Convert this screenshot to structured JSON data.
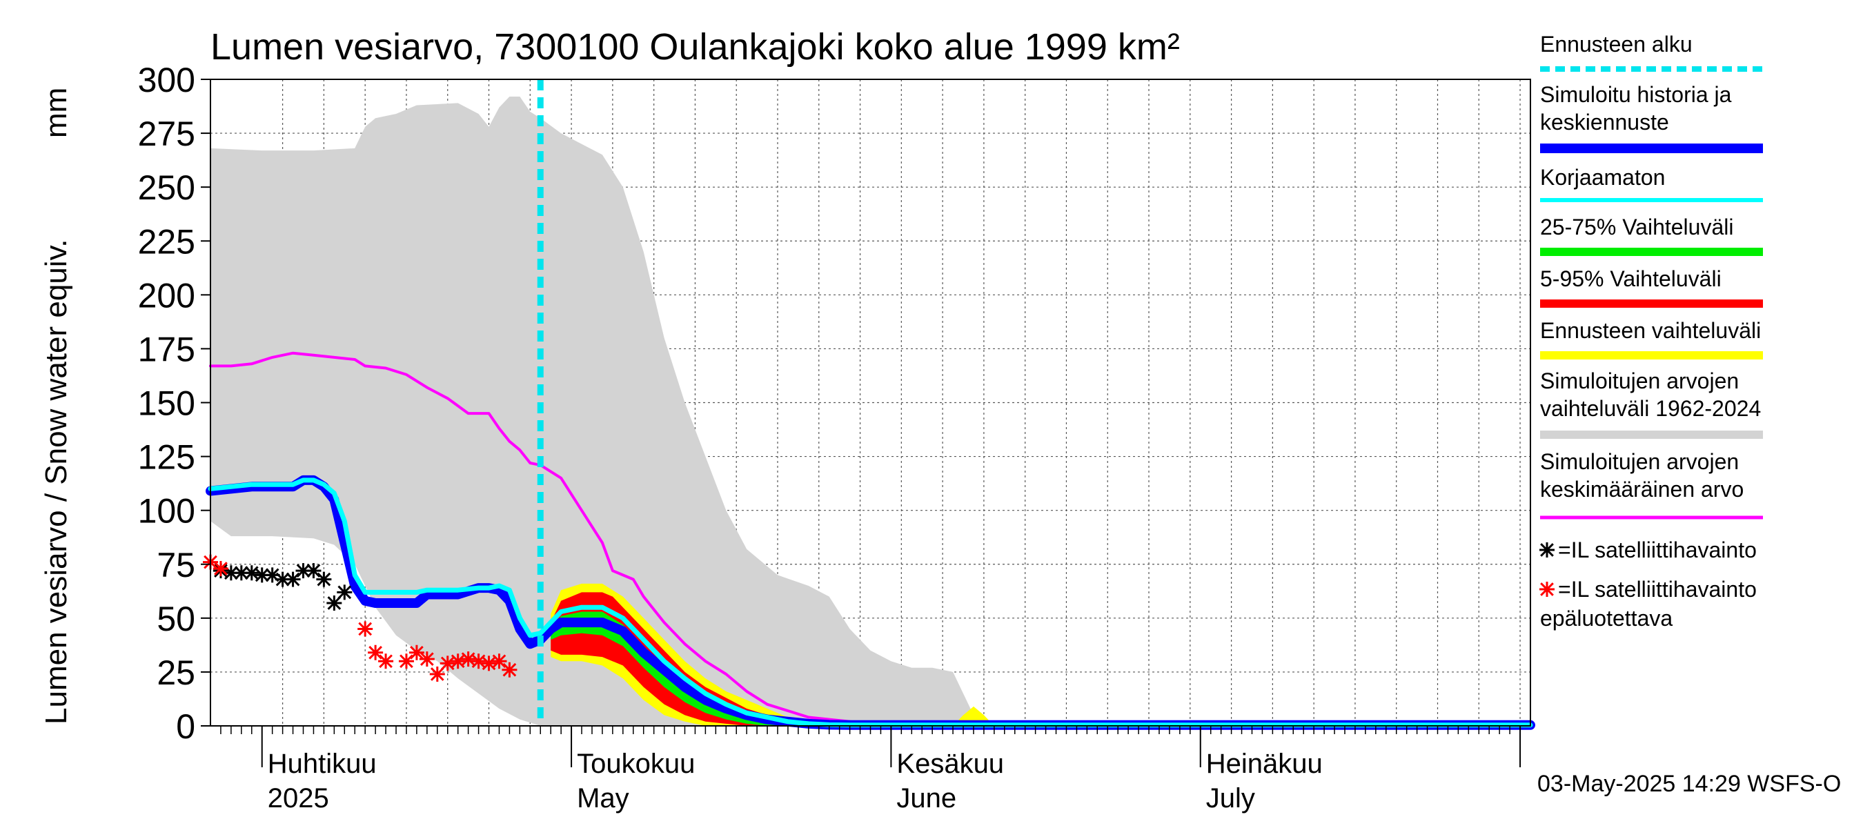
{
  "chart_data": {
    "type": "area",
    "title": "Lumen vesiarvo, 7300100 Oulankajoki koko alue 1999 km²",
    "ylabel": "Lumen vesiarvo / Snow water equiv.",
    "yunit": "mm",
    "ylim": [
      0,
      300
    ],
    "yticks": [
      0,
      25,
      50,
      75,
      100,
      125,
      150,
      175,
      200,
      225,
      250,
      275,
      300
    ],
    "xlim": [
      0,
      128
    ],
    "x_unit": "days since 2025-03-27",
    "month_ticks": [
      5,
      35,
      66,
      96,
      127
    ],
    "month_labels": [
      {
        "x": 5,
        "fi": "Huhtikuu",
        "en": "2025"
      },
      {
        "x": 35,
        "fi": "Toukokuu",
        "en": "May"
      },
      {
        "x": 66,
        "fi": "Kesäkuu",
        "en": "June"
      },
      {
        "x": 96,
        "fi": "Heinäkuu",
        "en": "July"
      }
    ],
    "forecast_start": 32,
    "timestamp": "03-May-2025 14:29 WSFS-O",
    "historical_range": {
      "upper": [
        [
          0,
          268
        ],
        [
          5,
          267
        ],
        [
          10,
          267
        ],
        [
          14,
          268
        ],
        [
          15,
          278
        ],
        [
          16,
          282
        ],
        [
          18,
          284
        ],
        [
          20,
          288
        ],
        [
          24,
          289
        ],
        [
          26,
          284
        ],
        [
          27,
          278
        ],
        [
          28,
          287
        ],
        [
          29,
          292
        ],
        [
          30,
          292
        ],
        [
          31,
          285
        ],
        [
          32,
          282
        ],
        [
          34,
          275
        ],
        [
          36,
          270
        ],
        [
          38,
          265
        ],
        [
          40,
          250
        ],
        [
          42,
          220
        ],
        [
          44,
          180
        ],
        [
          46,
          150
        ],
        [
          48,
          125
        ],
        [
          50,
          100
        ],
        [
          52,
          82
        ],
        [
          55,
          70
        ],
        [
          58,
          65
        ],
        [
          60,
          60
        ],
        [
          62,
          45
        ],
        [
          64,
          35
        ],
        [
          66,
          30
        ],
        [
          68,
          27
        ],
        [
          70,
          27
        ],
        [
          72,
          25
        ],
        [
          73,
          15
        ],
        [
          74,
          5
        ],
        [
          76,
          0
        ],
        [
          128,
          0
        ]
      ],
      "lower": [
        [
          0,
          95
        ],
        [
          2,
          88
        ],
        [
          6,
          88
        ],
        [
          10,
          87
        ],
        [
          12,
          84
        ],
        [
          14,
          75
        ],
        [
          16,
          55
        ],
        [
          18,
          42
        ],
        [
          20,
          35
        ],
        [
          22,
          30
        ],
        [
          24,
          22
        ],
        [
          26,
          15
        ],
        [
          28,
          8
        ],
        [
          30,
          3
        ],
        [
          32,
          0
        ],
        [
          128,
          0
        ]
      ]
    },
    "range_5_95": {
      "upper": [
        [
          33,
          48
        ],
        [
          34,
          58
        ],
        [
          36,
          62
        ],
        [
          38,
          62
        ],
        [
          39,
          60
        ],
        [
          40,
          55
        ],
        [
          42,
          45
        ],
        [
          44,
          35
        ],
        [
          46,
          25
        ],
        [
          48,
          18
        ],
        [
          50,
          13
        ],
        [
          52,
          8
        ],
        [
          54,
          5
        ],
        [
          56,
          3
        ],
        [
          58,
          1
        ],
        [
          60,
          0
        ],
        [
          128,
          0
        ]
      ],
      "lower": [
        [
          33,
          35
        ],
        [
          34,
          33
        ],
        [
          36,
          33
        ],
        [
          38,
          32
        ],
        [
          40,
          28
        ],
        [
          42,
          18
        ],
        [
          44,
          10
        ],
        [
          46,
          5
        ],
        [
          48,
          2
        ],
        [
          50,
          1
        ],
        [
          52,
          0
        ],
        [
          128,
          0
        ]
      ]
    },
    "range_25_75": {
      "upper": [
        [
          33,
          44
        ],
        [
          34,
          51
        ],
        [
          36,
          53
        ],
        [
          38,
          53
        ],
        [
          40,
          47
        ],
        [
          42,
          37
        ],
        [
          44,
          28
        ],
        [
          46,
          20
        ],
        [
          48,
          13
        ],
        [
          50,
          8
        ],
        [
          52,
          5
        ],
        [
          54,
          2
        ],
        [
          56,
          1
        ],
        [
          58,
          0
        ],
        [
          128,
          0
        ]
      ],
      "lower": [
        [
          33,
          40
        ],
        [
          34,
          42
        ],
        [
          36,
          43
        ],
        [
          38,
          42
        ],
        [
          40,
          37
        ],
        [
          42,
          27
        ],
        [
          44,
          18
        ],
        [
          46,
          11
        ],
        [
          48,
          6
        ],
        [
          50,
          3
        ],
        [
          52,
          1
        ],
        [
          54,
          0
        ],
        [
          128,
          0
        ]
      ]
    },
    "forecast_range": {
      "upper": [
        [
          33,
          52
        ],
        [
          34,
          63
        ],
        [
          36,
          66
        ],
        [
          38,
          66
        ],
        [
          40,
          60
        ],
        [
          42,
          50
        ],
        [
          44,
          40
        ],
        [
          46,
          30
        ],
        [
          48,
          22
        ],
        [
          50,
          16
        ],
        [
          52,
          12
        ],
        [
          54,
          8
        ],
        [
          56,
          4
        ],
        [
          58,
          2
        ],
        [
          60,
          1
        ],
        [
          62,
          0
        ],
        [
          72,
          0
        ],
        [
          73,
          5
        ],
        [
          74,
          9
        ],
        [
          75,
          5
        ],
        [
          76,
          0
        ],
        [
          128,
          0
        ]
      ],
      "lower": [
        [
          33,
          32
        ],
        [
          34,
          30
        ],
        [
          36,
          30
        ],
        [
          38,
          28
        ],
        [
          40,
          22
        ],
        [
          42,
          12
        ],
        [
          44,
          5
        ],
        [
          46,
          2
        ],
        [
          48,
          0
        ],
        [
          128,
          0
        ]
      ]
    },
    "series": [
      {
        "name": "Simuloitujen arvojen keskimääräinen arvo",
        "color": "#ff00ff",
        "points": [
          [
            0,
            167
          ],
          [
            2,
            167
          ],
          [
            4,
            168
          ],
          [
            6,
            171
          ],
          [
            8,
            173
          ],
          [
            10,
            172
          ],
          [
            12,
            171
          ],
          [
            14,
            170
          ],
          [
            15,
            167
          ],
          [
            17,
            166
          ],
          [
            19,
            163
          ],
          [
            21,
            157
          ],
          [
            23,
            152
          ],
          [
            25,
            145
          ],
          [
            27,
            145
          ],
          [
            28,
            138
          ],
          [
            29,
            132
          ],
          [
            30,
            128
          ],
          [
            31,
            122
          ],
          [
            32,
            121
          ],
          [
            33,
            118
          ],
          [
            34,
            115
          ],
          [
            36,
            100
          ],
          [
            38,
            85
          ],
          [
            39,
            72
          ],
          [
            41,
            68
          ],
          [
            42,
            60
          ],
          [
            44,
            48
          ],
          [
            46,
            38
          ],
          [
            48,
            30
          ],
          [
            50,
            24
          ],
          [
            52,
            16
          ],
          [
            54,
            10
          ],
          [
            56,
            7
          ],
          [
            58,
            4
          ],
          [
            60,
            3
          ],
          [
            62,
            2
          ],
          [
            64,
            1
          ],
          [
            66,
            0
          ],
          [
            128,
            0
          ]
        ]
      },
      {
        "name": "Korjaamaton",
        "color": "#00ffff",
        "points": [
          [
            0,
            110
          ],
          [
            2,
            111
          ],
          [
            4,
            112
          ],
          [
            6,
            112
          ],
          [
            8,
            112
          ],
          [
            9,
            114
          ],
          [
            10,
            114
          ],
          [
            11,
            112
          ],
          [
            12,
            108
          ],
          [
            13,
            95
          ],
          [
            14,
            70
          ],
          [
            15,
            62
          ],
          [
            16,
            62
          ],
          [
            18,
            62
          ],
          [
            20,
            62
          ],
          [
            21,
            63
          ],
          [
            22,
            63
          ],
          [
            24,
            63
          ],
          [
            26,
            64
          ],
          [
            27,
            64
          ],
          [
            28,
            65
          ],
          [
            29,
            63
          ],
          [
            30,
            50
          ],
          [
            31,
            42
          ],
          [
            32,
            43
          ],
          [
            33,
            48
          ],
          [
            34,
            53
          ],
          [
            36,
            55
          ],
          [
            38,
            55
          ],
          [
            40,
            50
          ],
          [
            42,
            40
          ],
          [
            44,
            30
          ],
          [
            46,
            22
          ],
          [
            48,
            15
          ],
          [
            50,
            10
          ],
          [
            52,
            6
          ],
          [
            54,
            4
          ],
          [
            56,
            2
          ],
          [
            58,
            1
          ],
          [
            60,
            0.5
          ],
          [
            62,
            0
          ],
          [
            128,
            0
          ]
        ]
      },
      {
        "name": "Simuloitu historia ja keskiennuste",
        "color": "#0000ff",
        "points": [
          [
            0,
            109
          ],
          [
            2,
            110
          ],
          [
            4,
            111
          ],
          [
            6,
            111
          ],
          [
            8,
            111
          ],
          [
            9,
            114
          ],
          [
            10,
            114
          ],
          [
            11,
            111
          ],
          [
            12,
            105
          ],
          [
            13,
            85
          ],
          [
            14,
            65
          ],
          [
            15,
            58
          ],
          [
            16,
            57
          ],
          [
            18,
            57
          ],
          [
            20,
            57
          ],
          [
            21,
            61
          ],
          [
            22,
            61
          ],
          [
            24,
            61
          ],
          [
            26,
            64
          ],
          [
            27,
            64
          ],
          [
            28,
            63
          ],
          [
            29,
            58
          ],
          [
            30,
            45
          ],
          [
            31,
            38
          ],
          [
            32,
            40
          ],
          [
            33,
            45
          ],
          [
            34,
            48
          ],
          [
            36,
            48
          ],
          [
            38,
            48
          ],
          [
            40,
            44
          ],
          [
            42,
            34
          ],
          [
            44,
            26
          ],
          [
            46,
            18
          ],
          [
            48,
            12
          ],
          [
            50,
            8
          ],
          [
            52,
            5
          ],
          [
            54,
            3
          ],
          [
            56,
            2
          ],
          [
            58,
            1
          ],
          [
            60,
            0.5
          ],
          [
            62,
            0
          ],
          [
            128,
            0
          ]
        ]
      }
    ],
    "satellite_obs": [
      [
        1,
        72
      ],
      [
        2,
        71
      ],
      [
        3,
        71
      ],
      [
        4,
        71
      ],
      [
        5,
        70
      ],
      [
        6,
        70
      ],
      [
        7,
        68
      ],
      [
        8,
        68
      ],
      [
        9,
        72
      ],
      [
        10,
        72
      ],
      [
        11,
        68
      ],
      [
        12,
        57
      ],
      [
        13,
        62
      ]
    ],
    "satellite_obs_unreliable": [
      [
        0,
        76
      ],
      [
        1,
        73
      ],
      [
        15,
        45
      ],
      [
        16,
        34
      ],
      [
        17,
        30
      ],
      [
        19,
        30
      ],
      [
        20,
        34
      ],
      [
        21,
        31
      ],
      [
        22,
        24
      ],
      [
        23,
        29
      ],
      [
        24,
        30
      ],
      [
        25,
        31
      ],
      [
        26,
        30
      ],
      [
        27,
        29
      ],
      [
        28,
        30
      ],
      [
        29,
        26
      ]
    ],
    "legend": [
      {
        "key": "forecast_start",
        "label": "Ennusteen alku",
        "color": "#00e5ee"
      },
      {
        "key": "simulated",
        "label": "Simuloitu historia ja keskiennuste",
        "color": "#0000ff"
      },
      {
        "key": "uncorrected",
        "label": "Korjaamaton",
        "color": "#00ffff"
      },
      {
        "key": "range_25_75",
        "label": "25-75% Vaihteluväli",
        "color": "#00ee00"
      },
      {
        "key": "range_5_95",
        "label": "5-95% Vaihteluväli",
        "color": "#ff0000"
      },
      {
        "key": "forecast_range",
        "label": "Ennusteen vaihteluväli",
        "color": "#ffff00"
      },
      {
        "key": "historical_range",
        "label": "Simuloitujen arvojen vaihteluväli 1962-2024",
        "color": "#d3d3d3"
      },
      {
        "key": "mean",
        "label": "Simuloitujen arvojen keskimääräinen arvo",
        "color": "#ff00ff"
      },
      {
        "key": "sat_obs",
        "label": "=IL satelliittihavainto",
        "color": "#000000"
      },
      {
        "key": "sat_obs_unreliable",
        "label": "=IL satelliittihavainto epäluotettava",
        "color": "#ff0000"
      }
    ]
  }
}
